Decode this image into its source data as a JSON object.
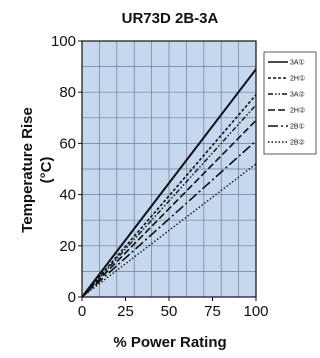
{
  "chart_data": {
    "type": "line",
    "title": "UR73D 2B-3A",
    "xlabel": "% Power Rating",
    "ylabel_line1": "Temperature Rise",
    "ylabel_line2": "(°C)",
    "xlim": [
      0,
      100
    ],
    "ylim": [
      0,
      100
    ],
    "xticks": [
      "0",
      "25",
      "50",
      "75",
      "100"
    ],
    "yticks": [
      "0",
      "20",
      "40",
      "60",
      "80",
      "100"
    ],
    "grid": true,
    "legend_position": "right",
    "colors": {
      "plot_background": "#c6d8ee",
      "grid": "#6a7f96",
      "series": "#111111"
    },
    "x": [
      0,
      100
    ],
    "series": [
      {
        "name": "3A①",
        "values": [
          0,
          89
        ],
        "dash": "solid"
      },
      {
        "name": "2H①",
        "values": [
          0,
          79
        ],
        "dash": "short-dash"
      },
      {
        "name": "3A②",
        "values": [
          0,
          75
        ],
        "dash": "dash-dot-dot"
      },
      {
        "name": "2H②",
        "values": [
          0,
          69
        ],
        "dash": "long-dash"
      },
      {
        "name": "2B①",
        "values": [
          0,
          61
        ],
        "dash": "long-dash-dot"
      },
      {
        "name": "2B②",
        "values": [
          0,
          52
        ],
        "dash": "dotted"
      }
    ]
  }
}
